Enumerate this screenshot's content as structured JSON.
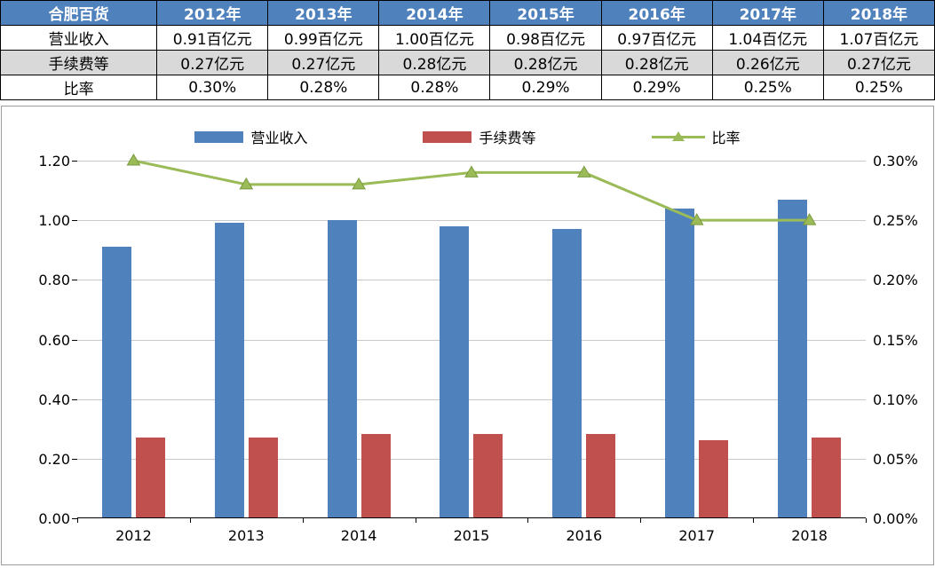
{
  "table": {
    "header": [
      "合肥百货",
      "2012年",
      "2013年",
      "2014年",
      "2015年",
      "2016年",
      "2017年",
      "2018年"
    ],
    "rows": [
      [
        "营业收入",
        "0.91百亿元",
        "0.99百亿元",
        "1.00百亿元",
        "0.98百亿元",
        "0.97百亿元",
        "1.04百亿元",
        "1.07百亿元"
      ],
      [
        "手续费等",
        "0.27亿元",
        "0.27亿元",
        "0.28亿元",
        "0.28亿元",
        "0.28亿元",
        "0.26亿元",
        "0.27亿元"
      ],
      [
        "比率",
        "0.30%",
        "0.28%",
        "0.28%",
        "0.29%",
        "0.29%",
        "0.25%",
        "0.25%"
      ]
    ]
  },
  "chart_data": {
    "type": "combo",
    "categories": [
      "2012",
      "2013",
      "2014",
      "2015",
      "2016",
      "2017",
      "2018"
    ],
    "series": [
      {
        "name": "营业收入",
        "type": "bar",
        "axis": "left",
        "color": "#4F81BD",
        "values": [
          0.91,
          0.99,
          1.0,
          0.98,
          0.97,
          1.04,
          1.07
        ]
      },
      {
        "name": "手续费等",
        "type": "bar",
        "axis": "left",
        "color": "#C0504D",
        "values": [
          0.27,
          0.27,
          0.28,
          0.28,
          0.28,
          0.26,
          0.27
        ]
      },
      {
        "name": "比率",
        "type": "line",
        "axis": "right",
        "color": "#9BBB59",
        "values": [
          0.3,
          0.28,
          0.28,
          0.29,
          0.29,
          0.25,
          0.25
        ]
      }
    ],
    "left_axis": {
      "min": 0,
      "max": 1.2,
      "step": 0.2,
      "labels": [
        "0.00",
        "0.20",
        "0.40",
        "0.60",
        "0.80",
        "1.00",
        "1.20"
      ]
    },
    "right_axis": {
      "min": 0,
      "max": 0.3,
      "step": 0.05,
      "labels": [
        "0.00%",
        "0.05%",
        "0.10%",
        "0.15%",
        "0.20%",
        "0.25%",
        "0.30%"
      ]
    },
    "legend": [
      {
        "label": "营业收入",
        "color": "#4F81BD",
        "marker": "bar"
      },
      {
        "label": "手续费等",
        "color": "#C0504D",
        "marker": "bar"
      },
      {
        "label": "比率",
        "color": "#9BBB59",
        "marker": "line"
      }
    ],
    "grid": true,
    "legend_position": "top"
  },
  "colors": {
    "table_header_bg": "#4F81BD",
    "table_alt_row_bg": "#D9D9D9",
    "gridline": "#C9C9C9"
  }
}
